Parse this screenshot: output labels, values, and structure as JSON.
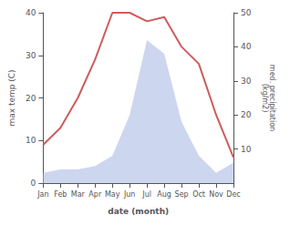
{
  "chart_data": {
    "type": "line",
    "xlabel": "date (month)",
    "ylabel": "max temp (C)",
    "y2label": "med. precipitation\n(kg/m2)",
    "categories": [
      "Jan",
      "Feb",
      "Mar",
      "Apr",
      "May",
      "Jun",
      "Jul",
      "Aug",
      "Sep",
      "Oct",
      "Nov",
      "Dec"
    ],
    "series": [
      {
        "type": "area",
        "axis": "y2",
        "color": "#b8c4e8",
        "values": [
          3,
          4,
          4,
          5,
          8,
          20,
          42,
          38,
          18,
          8,
          3,
          6
        ]
      },
      {
        "type": "line",
        "color": "#cd5c5c",
        "values": [
          9,
          13,
          20,
          29,
          40,
          40,
          38,
          39,
          32,
          28,
          16,
          6
        ]
      }
    ],
    "ylim": [
      0,
      40
    ],
    "yticks": [
      0,
      10,
      20,
      30,
      40
    ],
    "y2lim": [
      0,
      50
    ],
    "y2ticks": [
      10,
      20,
      30,
      40,
      50
    ],
    "grid": false
  }
}
